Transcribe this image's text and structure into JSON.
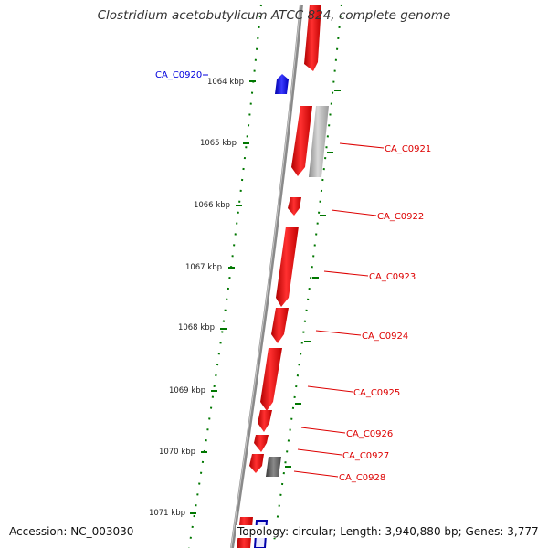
{
  "title": "Clostridium acetobutylicum ATCC 824, complete genome",
  "footer": {
    "accession": "Accession: NC_003030",
    "info": "Topology: circular; Length: 3,940,880 bp; Genes: 3,777"
  },
  "colors": {
    "plus_strand": "#ee0000",
    "minus_strand": "#0000dd",
    "other_gray": "#a8a8a8",
    "dark_gray": "#5a5a5a",
    "tick_green": "#007700",
    "backbone": "#888888"
  },
  "kbp_labels": [
    "1064 kbp",
    "1065 kbp",
    "1066 kbp",
    "1067 kbp",
    "1068 kbp",
    "1069 kbp",
    "1070 kbp",
    "1071 kbp"
  ],
  "genes": [
    {
      "id": "CA_C0920",
      "strand": "minus",
      "color": "#0000dd"
    },
    {
      "id": "CA_C0921",
      "strand": "plus",
      "color": "#dd0000"
    },
    {
      "id": "CA_C0922",
      "strand": "plus",
      "color": "#dd0000"
    },
    {
      "id": "CA_C0923",
      "strand": "plus",
      "color": "#dd0000"
    },
    {
      "id": "CA_C0924",
      "strand": "plus",
      "color": "#dd0000"
    },
    {
      "id": "CA_C0925",
      "strand": "plus",
      "color": "#dd0000"
    },
    {
      "id": "CA_C0926",
      "strand": "plus",
      "color": "#dd0000"
    },
    {
      "id": "CA_C0927",
      "strand": "plus",
      "color": "#dd0000"
    },
    {
      "id": "CA_C0928",
      "strand": "plus",
      "color": "#dd0000"
    }
  ]
}
